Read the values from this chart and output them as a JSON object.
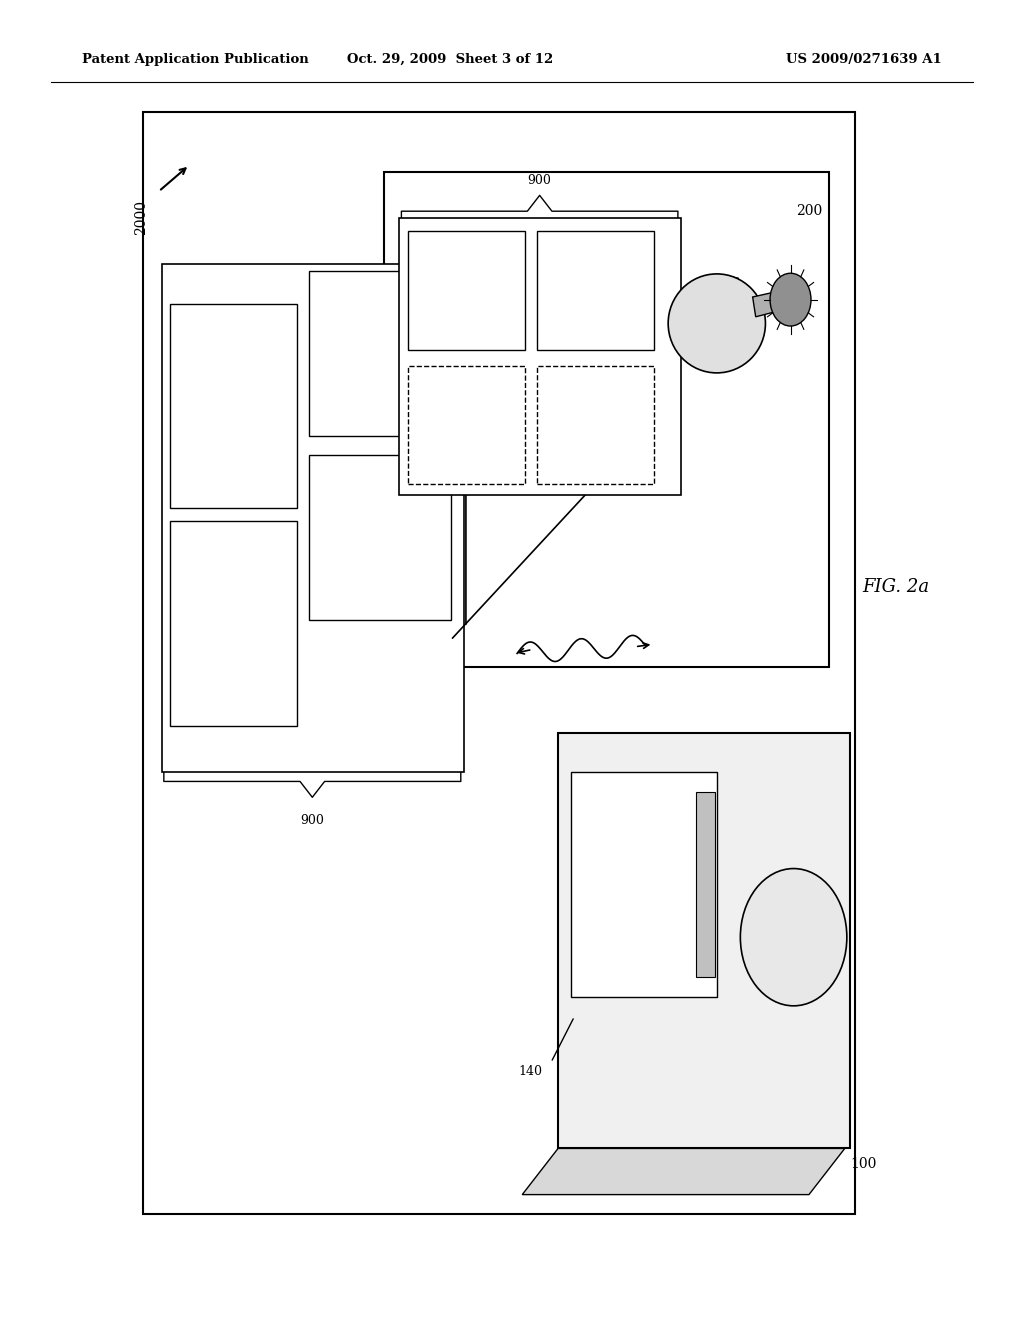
{
  "bg_color": "#ffffff",
  "header_left": "Patent Application Publication",
  "header_mid": "Oct. 29, 2009  Sheet 3 of 12",
  "header_right": "US 2009/0271639 A1",
  "fig_label": "FIG. 2a",
  "diagram_label": "2000"
}
